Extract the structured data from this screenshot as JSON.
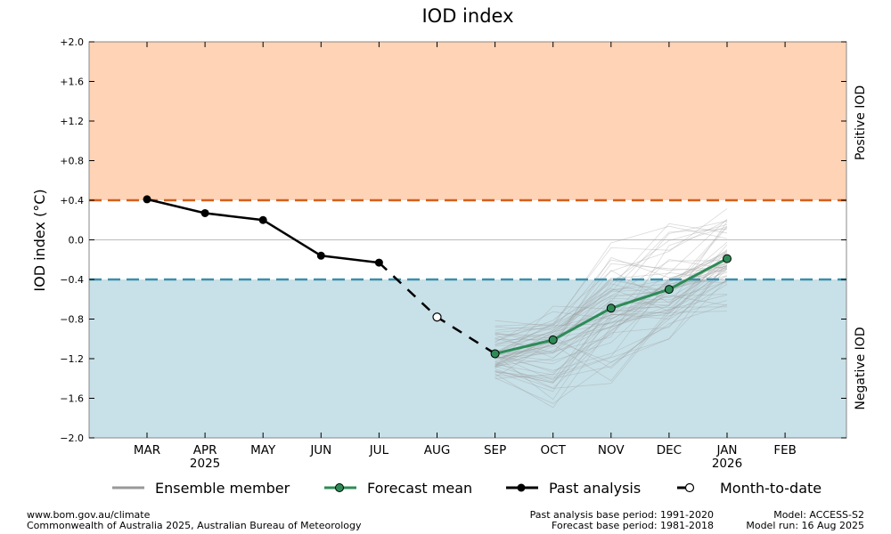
{
  "chart_data": {
    "type": "line",
    "title": "IOD index",
    "ylabel": "IOD index (°C)",
    "ylim": [
      -2.0,
      2.0
    ],
    "yticks": [
      "+2.0",
      "+1.6",
      "+1.2",
      "+0.8",
      "+0.4",
      "0.0",
      "−0.4",
      "−0.8",
      "−1.2",
      "−1.6",
      "−2.0"
    ],
    "ytick_values": [
      2.0,
      1.6,
      1.2,
      0.8,
      0.4,
      0.0,
      -0.4,
      -0.8,
      -1.2,
      -1.6,
      -2.0
    ],
    "months": [
      "MAR",
      "APR",
      "MAY",
      "JUN",
      "JUL",
      "AUG",
      "SEP",
      "OCT",
      "NOV",
      "DEC",
      "JAN",
      "FEB"
    ],
    "year_labels": [
      {
        "month": "APR",
        "label": "2025"
      },
      {
        "month": "JAN",
        "label": "2026"
      }
    ],
    "thresholds": {
      "positive": 0.4,
      "negative": -0.4
    },
    "zones": {
      "positive_label": "Positive IOD",
      "negative_label": "Negative IOD"
    },
    "colors": {
      "positive_fill": "#ffd3b5",
      "negative_fill": "#c8e1e8",
      "positive_line": "#d4601c",
      "negative_line": "#3a90ad",
      "positive_text": "#e87a6a",
      "negative_text": "#6a6aa8",
      "forecast": "#2e8b57",
      "ensemble": "#999999"
    },
    "series": [
      {
        "name": "Past analysis",
        "x": [
          "MAR",
          "APR",
          "MAY",
          "JUN",
          "JUL"
        ],
        "values": [
          0.41,
          0.27,
          0.2,
          -0.16,
          -0.23
        ]
      },
      {
        "name": "Month-to-date",
        "x": [
          "JUL",
          "AUG",
          "SEP"
        ],
        "values": [
          -0.23,
          -0.78,
          -1.15
        ]
      },
      {
        "name": "Forecast mean",
        "x": [
          "SEP",
          "OCT",
          "NOV",
          "DEC",
          "JAN"
        ],
        "values": [
          -1.15,
          -1.01,
          -0.69,
          -0.5,
          -0.19
        ]
      },
      {
        "name": "Ensemble member",
        "x": [
          "SEP",
          "OCT",
          "NOV",
          "DEC",
          "JAN"
        ],
        "range_low": [
          -1.4,
          -1.77,
          -1.45,
          -1.0,
          -0.72
        ],
        "range_high": [
          -0.8,
          -0.6,
          0.0,
          0.3,
          0.36
        ]
      }
    ],
    "legend": [
      "Ensemble member",
      "Forecast mean",
      "Past analysis",
      "Month-to-date"
    ],
    "legend_position": "bottom",
    "grid": false
  },
  "footer": {
    "left_line1": "www.bom.gov.au/climate",
    "left_line2": "Commonwealth of Australia 2025, Australian Bureau of Meteorology",
    "mid_line1": "Past analysis base period: 1991-2020",
    "mid_line2": "Forecast base period: 1981-2018",
    "right_line1": "Model: ACCESS-S2",
    "right_line2": "Model run: 16 Aug 2025"
  }
}
